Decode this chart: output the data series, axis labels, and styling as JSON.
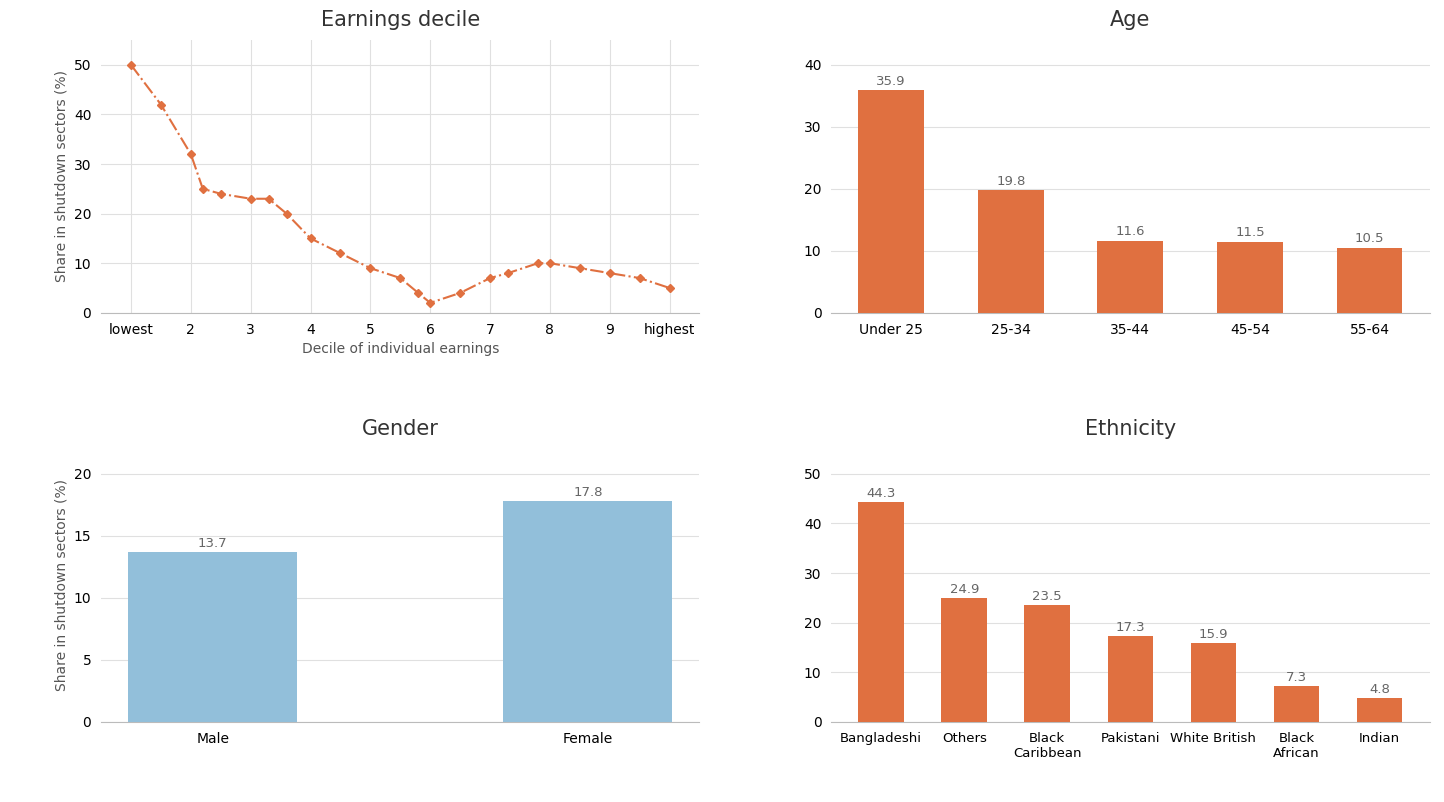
{
  "earnings_decile": {
    "title": "Earnings decile",
    "xlabel": "Decile of individual earnings",
    "ylabel": "Share in shutdown sectors (%)",
    "x": [
      1,
      1.5,
      2.0,
      2.2,
      2.5,
      3.0,
      3.3,
      3.6,
      4.0,
      4.5,
      5.0,
      5.5,
      5.8,
      6.0,
      6.5,
      7.0,
      7.3,
      7.8,
      8.0,
      8.5,
      9.0,
      9.5,
      10.0
    ],
    "y": [
      50,
      42,
      32,
      25,
      24,
      23,
      23,
      20,
      15,
      12,
      9,
      7,
      4,
      2,
      4,
      7,
      8,
      10,
      10,
      9,
      8,
      7,
      5
    ],
    "xtick_labels": [
      "lowest",
      "2",
      "3",
      "4",
      "5",
      "6",
      "7",
      "8",
      "9",
      "highest"
    ],
    "xtick_positions": [
      1,
      2,
      3,
      4,
      5,
      6,
      7,
      8,
      9,
      10
    ],
    "ylim": [
      0,
      55
    ],
    "yticks": [
      0,
      10,
      20,
      30,
      40,
      50
    ],
    "color": "#E07040",
    "linestyle": "-.",
    "marker": "D",
    "markersize": 4
  },
  "age": {
    "title": "Age",
    "ylabel": "",
    "categories": [
      "Under 25",
      "25-34",
      "35-44",
      "45-54",
      "55-64"
    ],
    "values": [
      35.9,
      19.8,
      11.6,
      11.5,
      10.5
    ],
    "ylim": [
      0,
      44
    ],
    "yticks": [
      0,
      10,
      20,
      30,
      40
    ],
    "color": "#E07040",
    "bar_width": 0.55
  },
  "gender": {
    "title": "Gender",
    "ylabel": "Share in shutdown sectors (%)",
    "categories": [
      "Male",
      "Female"
    ],
    "values": [
      13.7,
      17.8
    ],
    "ylim": [
      0,
      22
    ],
    "yticks": [
      0,
      5,
      10,
      15,
      20
    ],
    "color": "#92BFDA",
    "bar_width": 0.45
  },
  "ethnicity": {
    "title": "Ethnicity",
    "ylabel": "",
    "categories": [
      "Bangladeshi",
      "Others",
      "Black\nCaribbean",
      "Pakistani",
      "White British",
      "Black\nAfrican",
      "Indian"
    ],
    "values": [
      44.3,
      24.9,
      23.5,
      17.3,
      15.9,
      7.3,
      4.8
    ],
    "ylim": [
      0,
      55
    ],
    "yticks": [
      0,
      10,
      20,
      30,
      40,
      50
    ],
    "color": "#E07040",
    "bar_width": 0.55
  },
  "background_color": "#FFFFFF",
  "grid_color": "#E0E0E0",
  "title_fontsize": 15,
  "label_fontsize": 10,
  "tick_fontsize": 10,
  "annotation_fontsize": 9.5
}
